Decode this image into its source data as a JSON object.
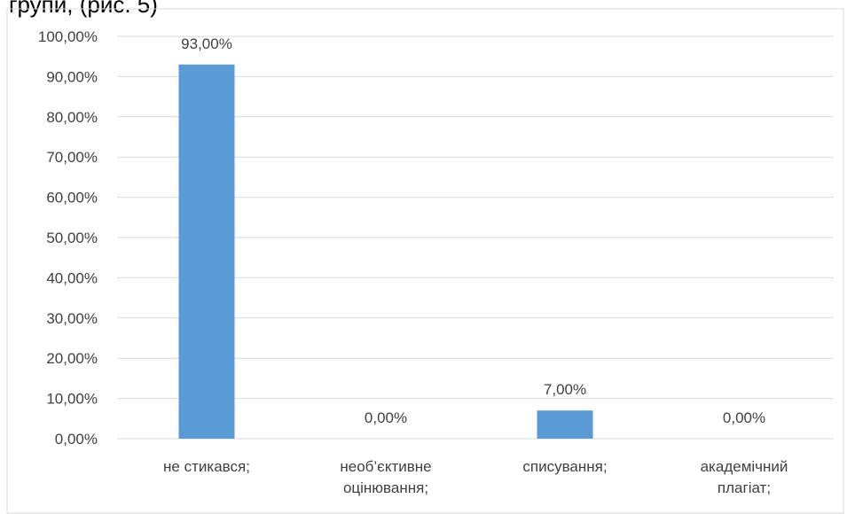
{
  "cropped_heading": "групи, (рис. 5)",
  "chart_data": {
    "type": "bar",
    "categories": [
      [
        "не стикався;"
      ],
      [
        "необ’єктивне",
        "оцінювання;"
      ],
      [
        "списування;"
      ],
      [
        "академічний",
        "плагіат;"
      ]
    ],
    "values": [
      93.0,
      0.0,
      7.0,
      0.0
    ],
    "data_labels": [
      "93,00%",
      "0,00%",
      "7,00%",
      "0,00%"
    ],
    "y_ticks": [
      "0,00%",
      "10,00%",
      "20,00%",
      "30,00%",
      "40,00%",
      "50,00%",
      "60,00%",
      "70,00%",
      "80,00%",
      "90,00%",
      "100,00%"
    ],
    "ylim": [
      0,
      100
    ],
    "y_step": 10,
    "grid": true,
    "legend": "none",
    "title": "",
    "xlabel": "",
    "ylabel": "",
    "bar_color": "#5b9bd5",
    "grid_color": "#d9d9d9",
    "frame_color": "#d9d9d9"
  }
}
